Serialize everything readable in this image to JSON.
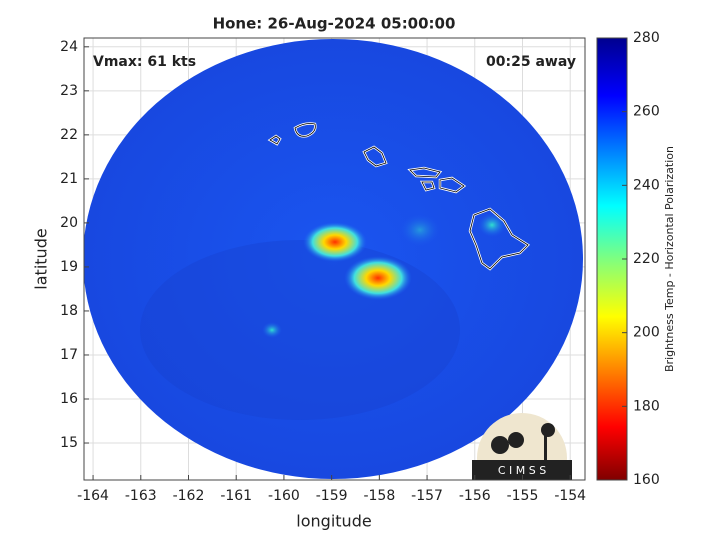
{
  "chart_data": {
    "type": "map",
    "title": "Hone: 26-Aug-2024 05:00:00",
    "annotations": [
      "Vmax: 61 kts",
      "00:25 away"
    ],
    "xlabel": "longitude",
    "ylabel": "latitude",
    "xlim": [
      -164.19,
      -153.69
    ],
    "ylim": [
      14.16,
      24.2
    ],
    "xticks": [
      -164,
      -163,
      -162,
      -161,
      -160,
      -159,
      -158,
      -157,
      -156,
      -155,
      -154
    ],
    "yticks": [
      15,
      16,
      17,
      18,
      19,
      20,
      21,
      22,
      23,
      24
    ],
    "grid": true,
    "colorbar": {
      "label": "Brightness Temp - Horizontal Polarization",
      "lim": [
        160,
        280
      ],
      "ticks": [
        160,
        180,
        200,
        220,
        240,
        260,
        280
      ]
    },
    "logo": "C I M S S"
  }
}
